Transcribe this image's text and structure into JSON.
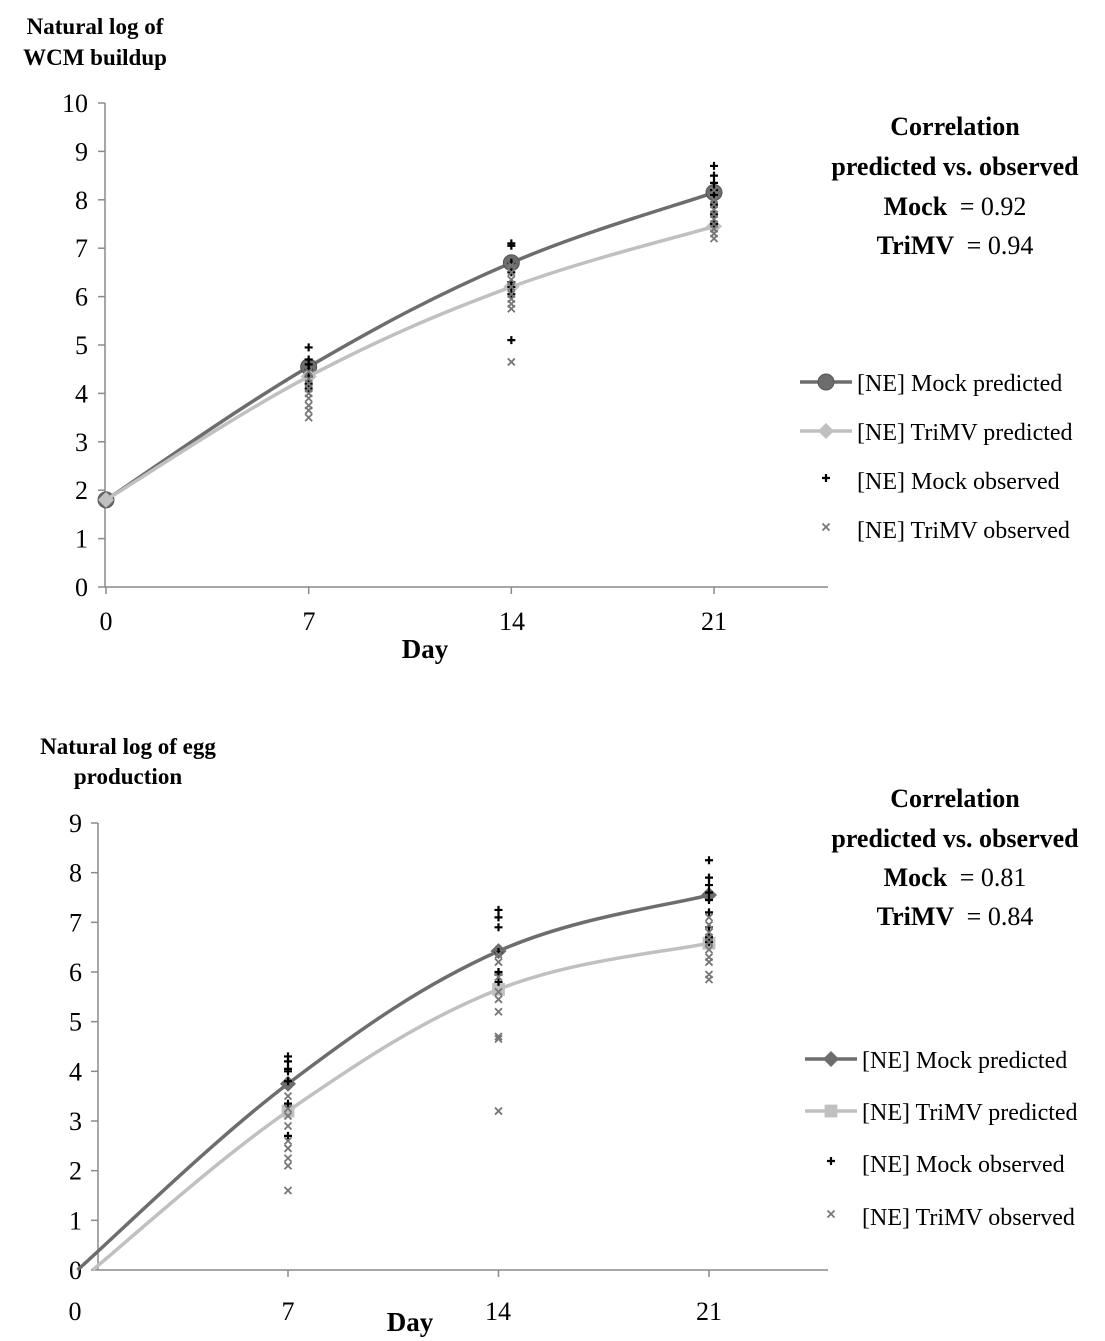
{
  "chart_data": [
    {
      "type": "line",
      "ylabel_lines": [
        "Natural log of",
        "WCM buildup"
      ],
      "xlabel": "Day",
      "xticks": [
        0,
        7,
        14,
        21
      ],
      "yticks": [
        0,
        1,
        2,
        3,
        4,
        5,
        6,
        7,
        8,
        9,
        10
      ],
      "xlim": [
        0,
        25
      ],
      "ylim": [
        0,
        10
      ],
      "legend_position": "right",
      "correlation": {
        "title_lines": [
          "Correlation",
          "predicted vs. observed"
        ],
        "mock_label": "Mock",
        "mock_value": "= 0.92",
        "trimv_label": "TriMV",
        "trimv_value": "= 0.94"
      },
      "series": [
        {
          "name": "[NE] Mock predicted",
          "kind": "line",
          "marker": "circle",
          "color": "#6d6d6d",
          "x": [
            0,
            7,
            14,
            21
          ],
          "y": [
            1.8,
            4.55,
            6.7,
            8.15
          ]
        },
        {
          "name": "[NE] TriMV predicted",
          "kind": "line",
          "marker": "diamond",
          "color": "#c0c0c0",
          "x": [
            0,
            7,
            14,
            21
          ],
          "y": [
            1.8,
            4.35,
            6.2,
            7.45
          ]
        },
        {
          "name": "[NE] Mock observed",
          "kind": "scatter",
          "marker": "plus",
          "color": "#000000",
          "x": [
            7,
            7,
            7,
            7,
            7,
            7,
            7,
            14,
            14,
            14,
            14,
            14,
            14,
            14,
            14,
            21,
            21,
            21,
            21,
            21,
            21,
            21,
            21
          ],
          "y": [
            4.95,
            4.7,
            4.6,
            4.5,
            4.35,
            4.2,
            4.1,
            7.1,
            7.05,
            6.7,
            6.5,
            6.3,
            6.2,
            6.05,
            5.1,
            8.7,
            8.5,
            8.35,
            8.2,
            8.1,
            7.9,
            7.7,
            7.5
          ]
        },
        {
          "name": "[NE] TriMV observed",
          "kind": "scatter",
          "marker": "x",
          "color": "#777777",
          "x": [
            7,
            7,
            7,
            7,
            7,
            7,
            7,
            7,
            7,
            14,
            14,
            14,
            14,
            14,
            14,
            14,
            14,
            14,
            21,
            21,
            21,
            21,
            21,
            21,
            21,
            21,
            21,
            21
          ],
          "y": [
            4.45,
            4.3,
            4.2,
            4.1,
            4.0,
            3.9,
            3.75,
            3.65,
            3.5,
            6.65,
            6.5,
            6.35,
            6.2,
            6.05,
            5.95,
            5.85,
            5.75,
            4.65,
            8.2,
            8.0,
            7.9,
            7.8,
            7.7,
            7.6,
            7.5,
            7.4,
            7.3,
            7.2
          ]
        }
      ]
    },
    {
      "type": "line",
      "ylabel_lines": [
        "Natural log of egg",
        "production"
      ],
      "xlabel": "Day",
      "xticks": [
        0,
        7,
        14,
        21
      ],
      "yticks": [
        0,
        1,
        2,
        3,
        4,
        5,
        6,
        7,
        8,
        9
      ],
      "xlim": [
        0,
        25
      ],
      "ylim": [
        0,
        9
      ],
      "legend_position": "right",
      "correlation": {
        "title_lines": [
          "Correlation",
          "predicted vs. observed"
        ],
        "mock_label": "Mock",
        "mock_value": "= 0.81",
        "trimv_label": "TriMV",
        "trimv_value": "= 0.84"
      },
      "series": [
        {
          "name": "[NE] Mock predicted",
          "kind": "line",
          "marker": "diamond",
          "color": "#6d6d6d",
          "x": [
            0,
            7,
            14,
            21
          ],
          "y": [
            0,
            3.75,
            6.42,
            7.55
          ]
        },
        {
          "name": "[NE] TriMV predicted",
          "kind": "line",
          "marker": "square",
          "color": "#c0c0c0",
          "x": [
            0.5,
            7,
            14,
            21
          ],
          "y": [
            0,
            3.2,
            5.65,
            6.58
          ]
        },
        {
          "name": "[NE] Mock observed",
          "kind": "scatter",
          "marker": "plus",
          "color": "#000000",
          "x": [
            7,
            7,
            7,
            7,
            7,
            7,
            7,
            14,
            14,
            14,
            14,
            14,
            14,
            14,
            21,
            21,
            21,
            21,
            21,
            21,
            21,
            21,
            21
          ],
          "y": [
            4.3,
            4.2,
            4.05,
            4.0,
            3.8,
            3.35,
            2.7,
            7.25,
            7.1,
            6.9,
            6.4,
            6.0,
            5.95,
            5.8,
            8.25,
            7.9,
            7.75,
            7.6,
            7.45,
            7.2,
            6.9,
            6.7,
            6.6
          ]
        },
        {
          "name": "[NE] TriMV observed",
          "kind": "scatter",
          "marker": "x",
          "color": "#777777",
          "x": [
            7,
            7,
            7,
            7,
            7,
            7,
            7,
            7,
            7,
            14,
            14,
            14,
            14,
            14,
            14,
            14,
            14,
            14,
            21,
            21,
            21,
            21,
            21,
            21,
            21,
            21,
            21,
            21
          ],
          "y": [
            3.5,
            3.25,
            3.1,
            2.9,
            2.6,
            2.45,
            2.25,
            2.1,
            1.6,
            6.35,
            6.2,
            5.9,
            5.6,
            5.45,
            5.2,
            4.7,
            4.65,
            3.2,
            7.1,
            6.95,
            6.8,
            6.7,
            6.6,
            6.45,
            6.3,
            6.2,
            5.95,
            5.85
          ]
        }
      ]
    }
  ]
}
